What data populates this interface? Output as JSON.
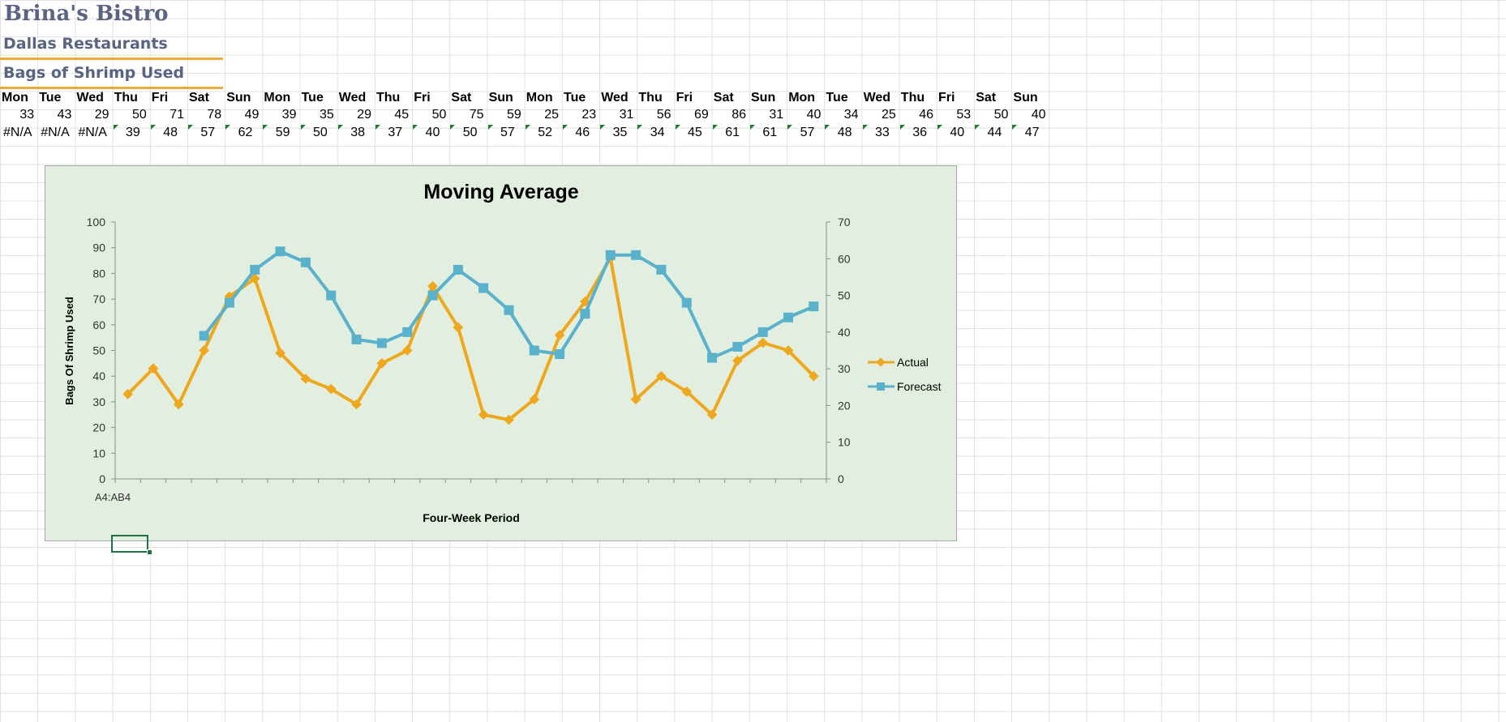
{
  "sheet": {
    "title": "Brina's Bistro",
    "subtitle": "Dallas Restaurants",
    "section": "Bags of Shrimp Used",
    "days": [
      "Mon",
      "Tue",
      "Wed",
      "Thu",
      "Fri",
      "Sat",
      "Sun",
      "Mon",
      "Tue",
      "Wed",
      "Thu",
      "Fri",
      "Sat",
      "Sun",
      "Mon",
      "Tue",
      "Wed",
      "Thu",
      "Fri",
      "Sat",
      "Sun",
      "Mon",
      "Tue",
      "Wed",
      "Thu",
      "Fri",
      "Sat",
      "Sun"
    ],
    "actual": [
      33,
      43,
      29,
      50,
      71,
      78,
      49,
      39,
      35,
      29,
      45,
      50,
      75,
      59,
      25,
      23,
      31,
      56,
      69,
      86,
      31,
      40,
      34,
      25,
      46,
      53,
      50,
      40
    ],
    "forecast": [
      "#N/A",
      "#N/A",
      "#N/A",
      39,
      48,
      57,
      62,
      59,
      50,
      38,
      37,
      40,
      50,
      57,
      52,
      46,
      35,
      34,
      45,
      61,
      61,
      57,
      48,
      33,
      36,
      40,
      44,
      47
    ],
    "error_marker_color": "#1e7b34"
  },
  "chart_data": {
    "type": "line",
    "title": "Moving Average",
    "xlabel": "Four-Week Period",
    "ylabel": "Bags Of Shrimp Used",
    "x_tick_label": "A4:AB4",
    "ylim_left": [
      0,
      100
    ],
    "ylim_right": [
      0,
      70
    ],
    "left_ticks": [
      "0",
      "10",
      "20",
      "30",
      "40",
      "50",
      "60",
      "70",
      "80",
      "90",
      "100"
    ],
    "right_ticks": [
      "0",
      "10",
      "20",
      "30",
      "40",
      "50",
      "60",
      "70"
    ],
    "series": [
      {
        "name": "Actual",
        "axis": "left",
        "color": "#efa71c",
        "marker": "diamond",
        "values": [
          33,
          43,
          29,
          50,
          71,
          78,
          49,
          39,
          35,
          29,
          45,
          50,
          75,
          59,
          25,
          23,
          31,
          56,
          69,
          86,
          31,
          40,
          34,
          25,
          46,
          53,
          50,
          40
        ]
      },
      {
        "name": "Forecast",
        "axis": "right",
        "color": "#5ab1cc",
        "marker": "square",
        "values": [
          null,
          null,
          null,
          39,
          48,
          57,
          62,
          59,
          50,
          38,
          37,
          40,
          50,
          57,
          52,
          46,
          35,
          34,
          45,
          61,
          61,
          57,
          48,
          33,
          36,
          40,
          44,
          47
        ]
      }
    ],
    "legend_position": "right",
    "background": "#e2efe0"
  }
}
